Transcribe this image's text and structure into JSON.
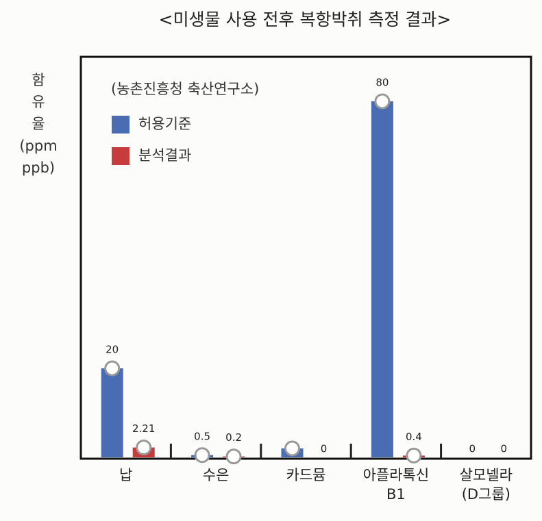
{
  "chart_data": {
    "type": "bar",
    "title": "<미생물 사용 전후 복항박취 측정 결과>",
    "y_label": [
      "함",
      "유",
      "율",
      "(ppm",
      "ppb)"
    ],
    "legend_title": "(농촌진흥청 축산연구소)",
    "categories": [
      [
        "납"
      ],
      [
        "수은"
      ],
      [
        "카드뮴"
      ],
      [
        "아플라톡신",
        "B1"
      ],
      [
        "살모넬라",
        "(D그룹)"
      ]
    ],
    "series": [
      {
        "name": "허용기준",
        "color": "#4a6cb2",
        "values": [
          20,
          0.5,
          2,
          80,
          0
        ],
        "value_labels": [
          "20",
          "0.5",
          null,
          "80",
          "0"
        ]
      },
      {
        "name": "분석결과",
        "color": "#c63b3b",
        "values": [
          2.21,
          0.2,
          0,
          0.4,
          0
        ],
        "value_labels": [
          "2.21",
          "0.2",
          "0",
          "0.4",
          "0"
        ]
      }
    ],
    "ylim": [
      0,
      90
    ]
  }
}
